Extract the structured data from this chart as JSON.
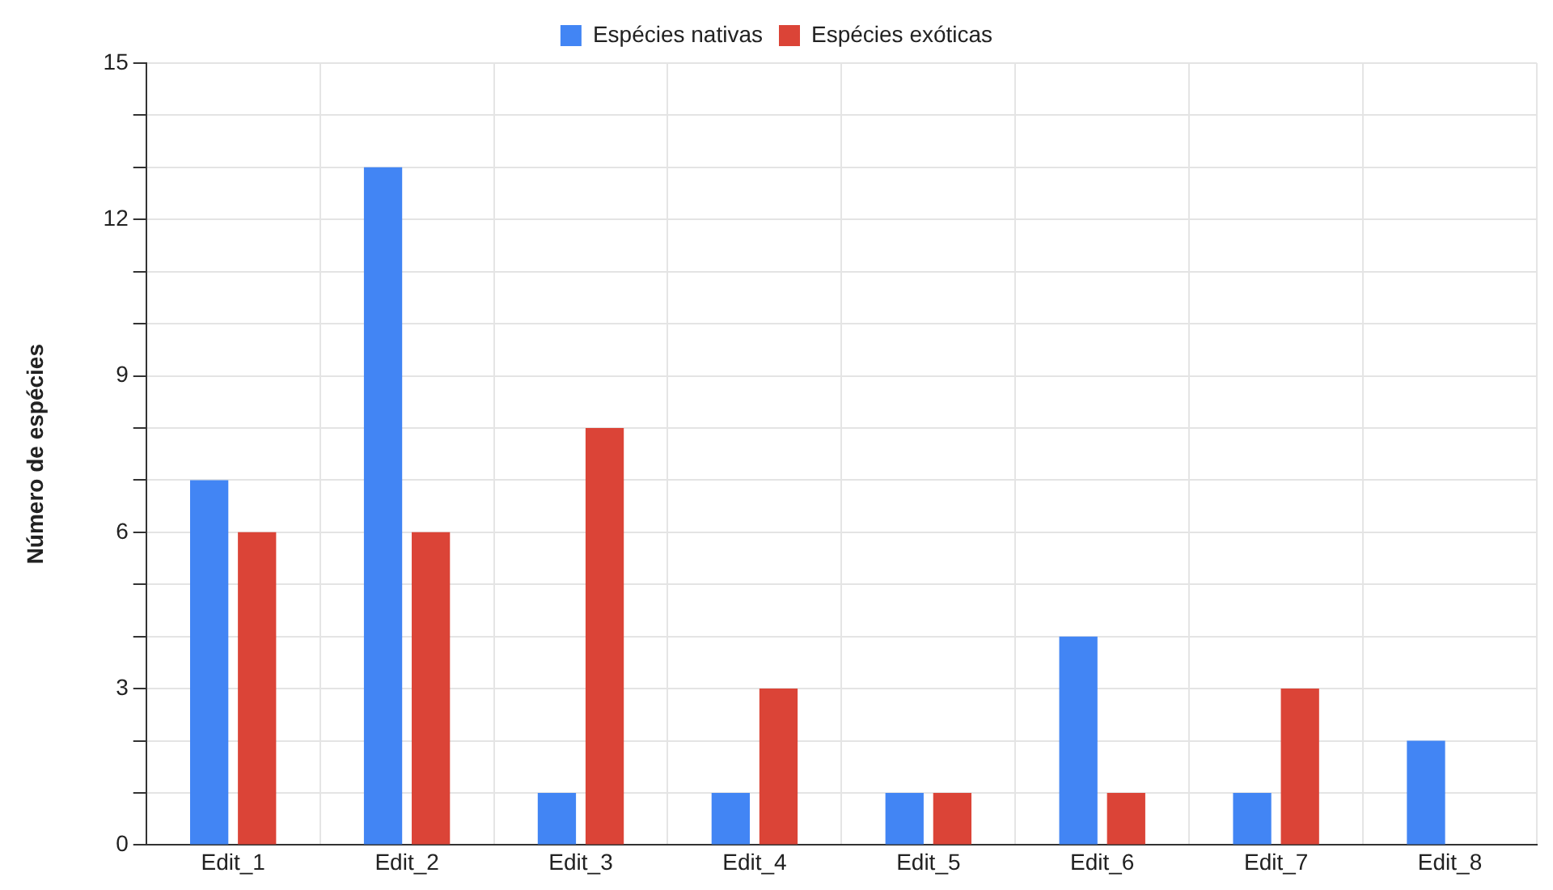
{
  "chart_data": {
    "type": "bar",
    "ylabel": "Número de espécies",
    "categories": [
      "Edit_1",
      "Edit_2",
      "Edit_3",
      "Edit_4",
      "Edit_5",
      "Edit_6",
      "Edit_7",
      "Edit_8"
    ],
    "series": [
      {
        "name": "Espécies nativas",
        "color": "#4285f4",
        "values": [
          7,
          13,
          1,
          1,
          1,
          4,
          1,
          2
        ]
      },
      {
        "name": "Espécies exóticas",
        "color": "#db4437",
        "values": [
          6,
          6,
          8,
          3,
          1,
          1,
          3,
          0
        ]
      }
    ],
    "ylim": [
      0,
      15
    ],
    "yticks": [
      0,
      {
        "value": 1,
        "label": null
      },
      {
        "value": 2,
        "label": null
      },
      3,
      {
        "value": 4,
        "label": null
      },
      {
        "value": 5,
        "label": null
      },
      6,
      {
        "value": 7,
        "label": null
      },
      {
        "value": 8,
        "label": null
      },
      9,
      {
        "value": 10,
        "label": null
      },
      {
        "value": 11,
        "label": null
      },
      12,
      {
        "value": 13,
        "label": null
      },
      {
        "value": 14,
        "label": null
      },
      15
    ],
    "grid": true,
    "legend": "top"
  }
}
